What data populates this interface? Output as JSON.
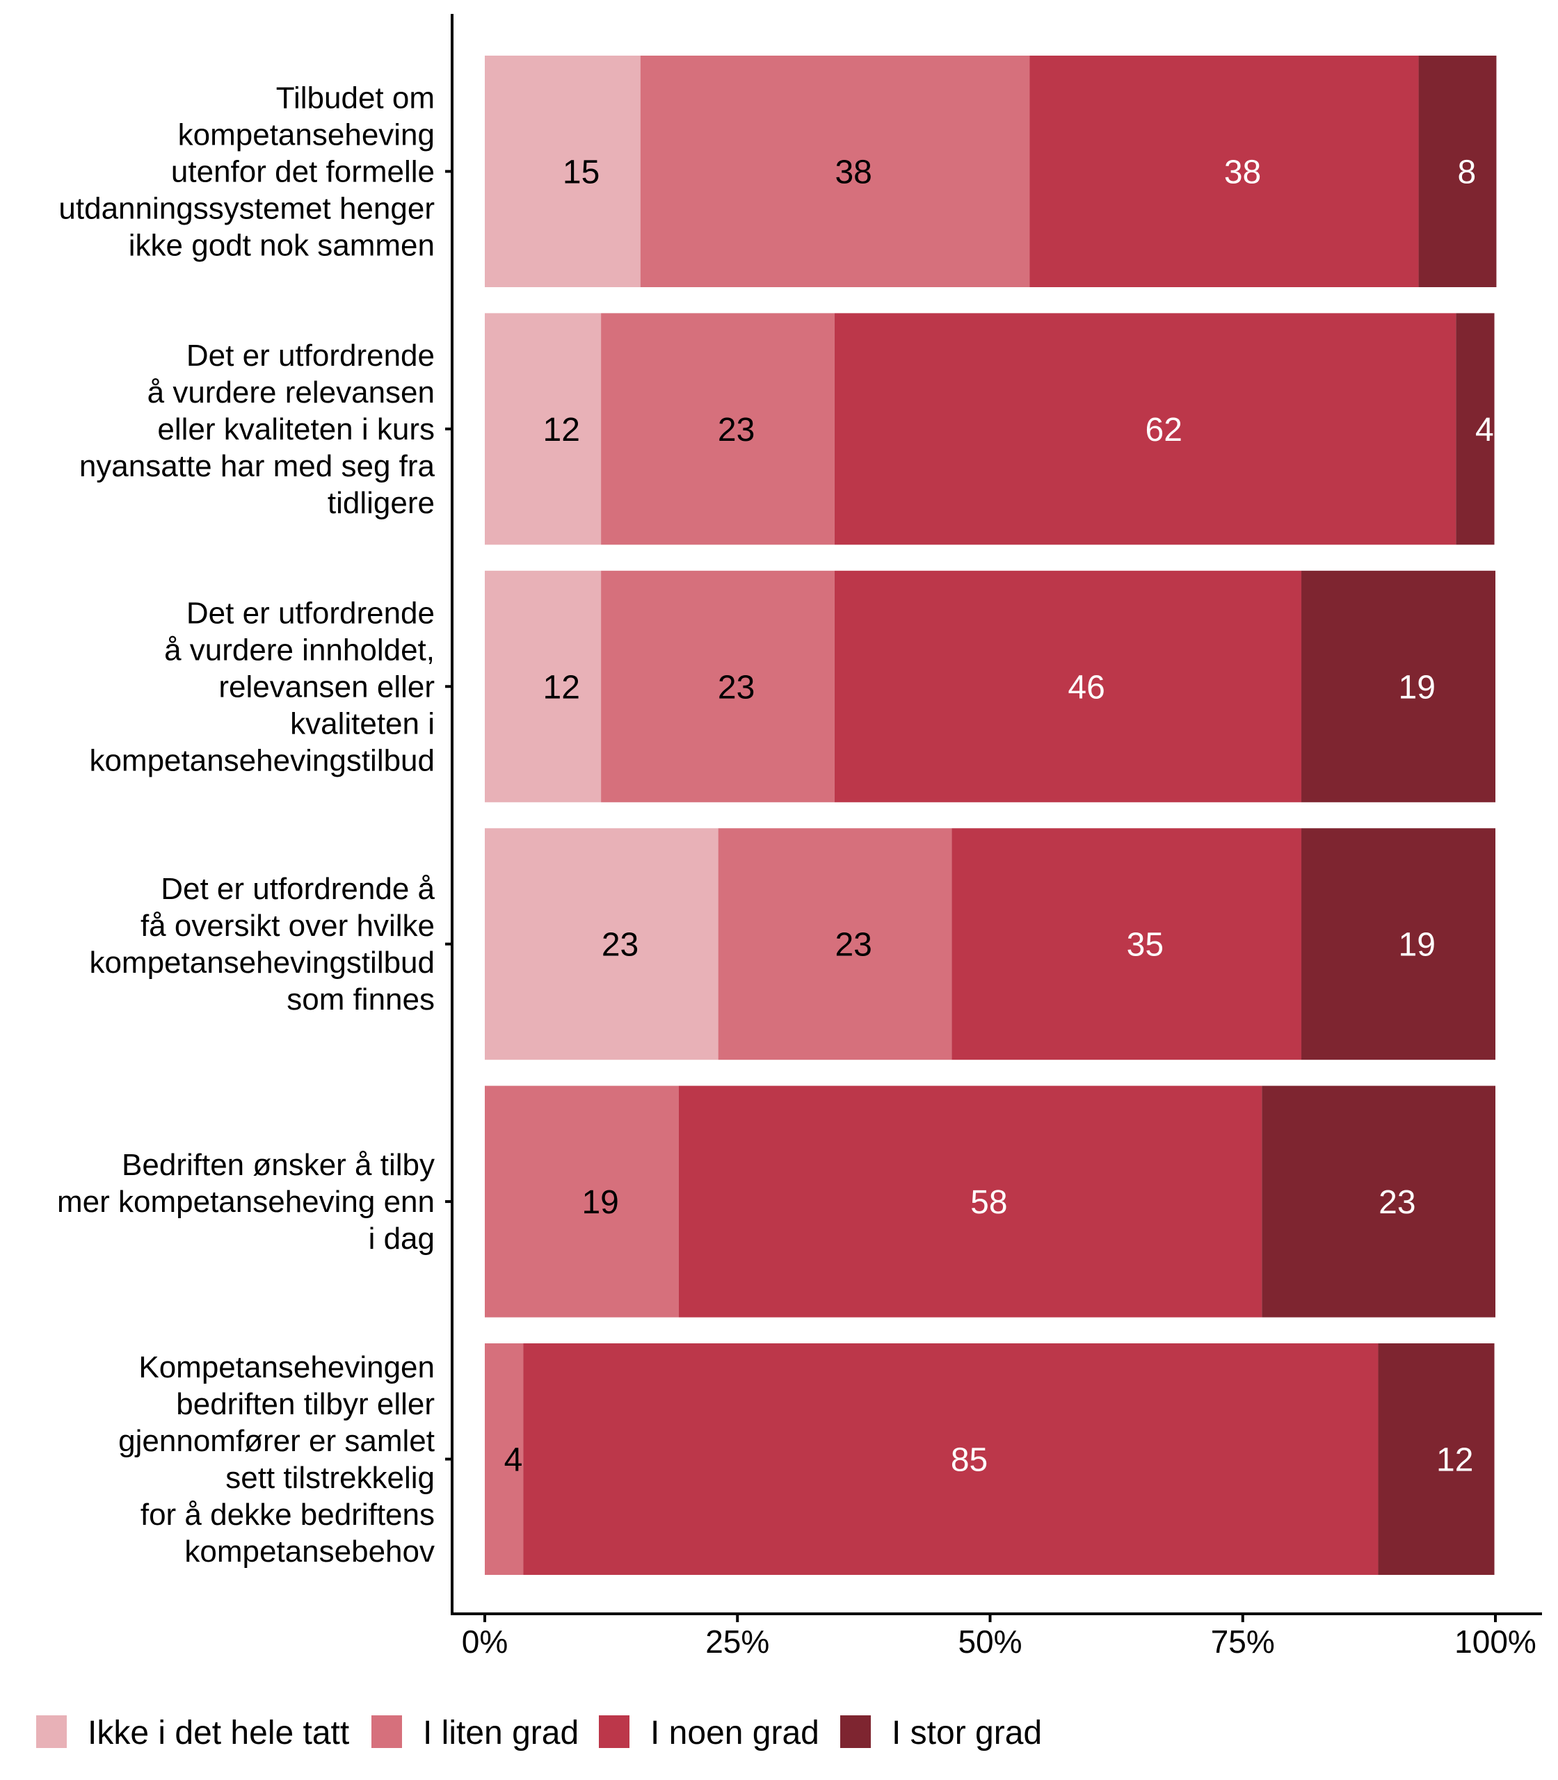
{
  "chart_data": {
    "type": "bar",
    "orientation": "horizontal",
    "stacked": true,
    "normalized": true,
    "title": "",
    "xlabel": "",
    "ylabel": "",
    "xlim": [
      0,
      100
    ],
    "x_ticks": [
      "0%",
      "25%",
      "50%",
      "75%",
      "100%"
    ],
    "x_tick_values": [
      0,
      25,
      50,
      75,
      100
    ],
    "grid": false,
    "legend_position": "bottom-left",
    "categories": [
      [
        "Tilbudet om",
        "kompetanseheving",
        "utenfor det formelle",
        "utdanningssystemet henger",
        "ikke godt nok sammen"
      ],
      [
        "Det er utfordrende",
        "å vurdere relevansen",
        "eller kvaliteten i kurs",
        "nyansatte har med seg fra",
        "tidligere"
      ],
      [
        "Det er utfordrende",
        "å vurdere innholdet,",
        "relevansen eller",
        "kvaliteten i",
        "kompetansehevingstilbud"
      ],
      [
        "Det er utfordrende å",
        "få oversikt over hvilke",
        "kompetansehevingstilbud",
        "som finnes"
      ],
      [
        "Bedriften ønsker å tilby",
        "mer kompetanseheving enn",
        "i dag"
      ],
      [
        "Kompetansehevingen",
        "bedriften tilbyr eller",
        "gjennomfører er samlet",
        "sett tilstrekkelig",
        "for å dekke bedriftens",
        "kompetansebehov"
      ]
    ],
    "series": [
      {
        "name": "Ikke i det hele tatt",
        "color": "#E8B1B7",
        "label_color": "#000000",
        "values": [
          15.4,
          11.5,
          11.5,
          23.1,
          0,
          0
        ],
        "labels": [
          "15",
          "12",
          "12",
          "23",
          "",
          ""
        ]
      },
      {
        "name": "I liten grad",
        "color": "#D6707C",
        "label_color": "#000000",
        "values": [
          38.5,
          23.1,
          23.1,
          23.1,
          19.2,
          3.8
        ],
        "labels": [
          "38",
          "23",
          "23",
          "23",
          "19",
          "4"
        ]
      },
      {
        "name": "I noen grad",
        "color": "#BC374A",
        "label_color": "#FFFFFF",
        "values": [
          38.5,
          61.5,
          46.2,
          34.6,
          57.7,
          84.6
        ],
        "labels": [
          "38",
          "62",
          "46",
          "35",
          "58",
          "85"
        ]
      },
      {
        "name": "I stor grad",
        "color": "#7E2530",
        "label_color": "#FFFFFF",
        "values": [
          7.7,
          3.8,
          19.2,
          19.2,
          23.1,
          11.5
        ],
        "labels": [
          "8",
          "4",
          "19",
          "19",
          "23",
          "12"
        ]
      }
    ]
  },
  "legend": {
    "items": [
      {
        "label": "Ikke i det hele tatt",
        "color": "#E8B1B7"
      },
      {
        "label": "I liten grad",
        "color": "#D6707C"
      },
      {
        "label": "I noen grad",
        "color": "#BC374A"
      },
      {
        "label": "I stor grad",
        "color": "#7E2530"
      }
    ]
  }
}
